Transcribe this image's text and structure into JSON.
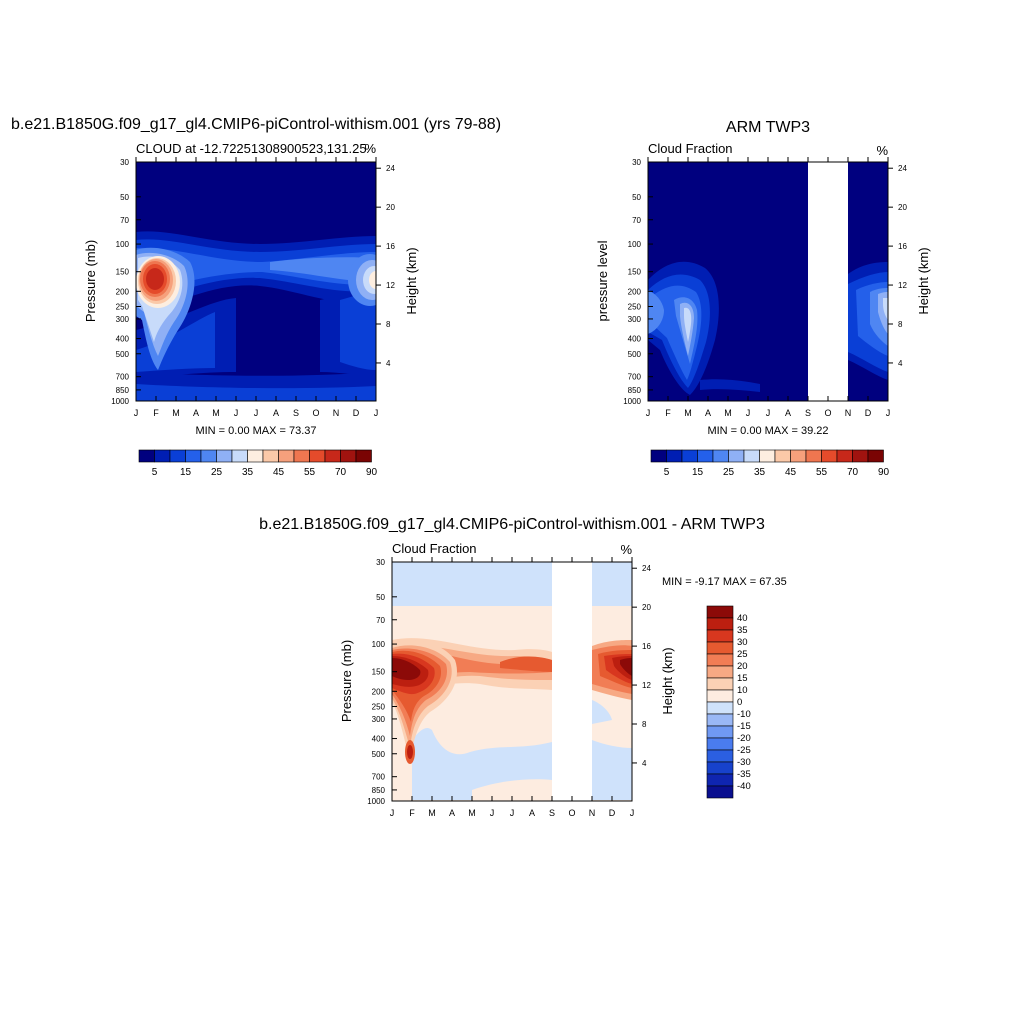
{
  "colors": {
    "model_scale": [
      "#00007f",
      "#001eb3",
      "#0a3fd6",
      "#2460ea",
      "#4f86f2",
      "#8fb0f5",
      "#c8dbfa",
      "#fdeee0",
      "#fbc9a8",
      "#f6a07c",
      "#ef7650",
      "#e54b2b",
      "#c7281a",
      "#a0130f",
      "#7a0403"
    ],
    "diff_scale": [
      "#0a0f8f",
      "#0f25b0",
      "#1742cc",
      "#2b5fe1",
      "#4a7cef",
      "#7099f3",
      "#9ab8f6",
      "#cfe2fb",
      "#fdece0",
      "#fbd1b5",
      "#f7a984",
      "#f17d55",
      "#e65a30",
      "#d8371f",
      "#bc1f10",
      "#8c0a08"
    ]
  },
  "chart_data": [
    {
      "type": "heatmap",
      "id": "model",
      "title": "b.e21.B1850G.f09_g17_gl4.CMIP6-piControl-withism.001 (yrs 79-88)",
      "subtitle_left": "CLOUD at -12.72251308900523,131.25",
      "subtitle_right": "%",
      "ylabel": "Pressure (mb)",
      "ylabel_right": "Height (km)",
      "x_ticks": [
        "J",
        "F",
        "M",
        "A",
        "M",
        "J",
        "J",
        "A",
        "S",
        "O",
        "N",
        "D",
        "J"
      ],
      "y_ticks": [
        30,
        50,
        70,
        100,
        150,
        200,
        250,
        300,
        400,
        500,
        700,
        850,
        1000
      ],
      "y_right_ticks": [
        24,
        20,
        16,
        12,
        8,
        4
      ],
      "y_scale": "log",
      "stats": "MIN =   0.00 MAX =  73.37",
      "colorbar_labels": [
        "5",
        "15",
        "25",
        "35",
        "45",
        "55",
        "70",
        "90"
      ],
      "min": 0.0,
      "max": 73.37
    },
    {
      "type": "heatmap",
      "id": "obs",
      "title": "ARM TWP3",
      "subtitle_left": "Cloud Fraction",
      "subtitle_right": "%",
      "ylabel": "pressure level",
      "ylabel_right": "Height (km)",
      "x_ticks": [
        "J",
        "F",
        "M",
        "A",
        "M",
        "J",
        "J",
        "A",
        "S",
        "O",
        "N",
        "D",
        "J"
      ],
      "y_ticks": [
        30,
        50,
        70,
        100,
        150,
        200,
        250,
        300,
        400,
        500,
        700,
        850,
        1000
      ],
      "y_right_ticks": [
        24,
        20,
        16,
        12,
        8,
        4
      ],
      "y_scale": "log",
      "missing_months": [
        "S",
        "O",
        "N"
      ],
      "stats": "MIN =   0.00 MAX =  39.22",
      "colorbar_labels": [
        "5",
        "15",
        "25",
        "35",
        "45",
        "55",
        "70",
        "90"
      ],
      "min": 0.0,
      "max": 39.22
    },
    {
      "type": "heatmap",
      "id": "diff",
      "title": "b.e21.B1850G.f09_g17_gl4.CMIP6-piControl-withism.001 - ARM TWP3",
      "subtitle_left": "Cloud Fraction",
      "subtitle_right": "%",
      "ylabel": "Pressure (mb)",
      "ylabel_right": "Height (km)",
      "x_ticks": [
        "J",
        "F",
        "M",
        "A",
        "M",
        "J",
        "J",
        "A",
        "S",
        "O",
        "N",
        "D",
        "J"
      ],
      "y_ticks": [
        30,
        50,
        70,
        100,
        150,
        200,
        250,
        300,
        400,
        500,
        700,
        850,
        1000
      ],
      "y_right_ticks": [
        24,
        20,
        16,
        12,
        8,
        4
      ],
      "y_scale": "log",
      "missing_months": [
        "S",
        "O",
        "N"
      ],
      "stats": "MIN =  -9.17 MAX =  67.35",
      "colorbar_labels": [
        "40",
        "35",
        "30",
        "25",
        "20",
        "15",
        "10",
        "0",
        "-10",
        "-15",
        "-20",
        "-25",
        "-30",
        "-35",
        "-40"
      ],
      "min": -9.17,
      "max": 67.35
    }
  ]
}
